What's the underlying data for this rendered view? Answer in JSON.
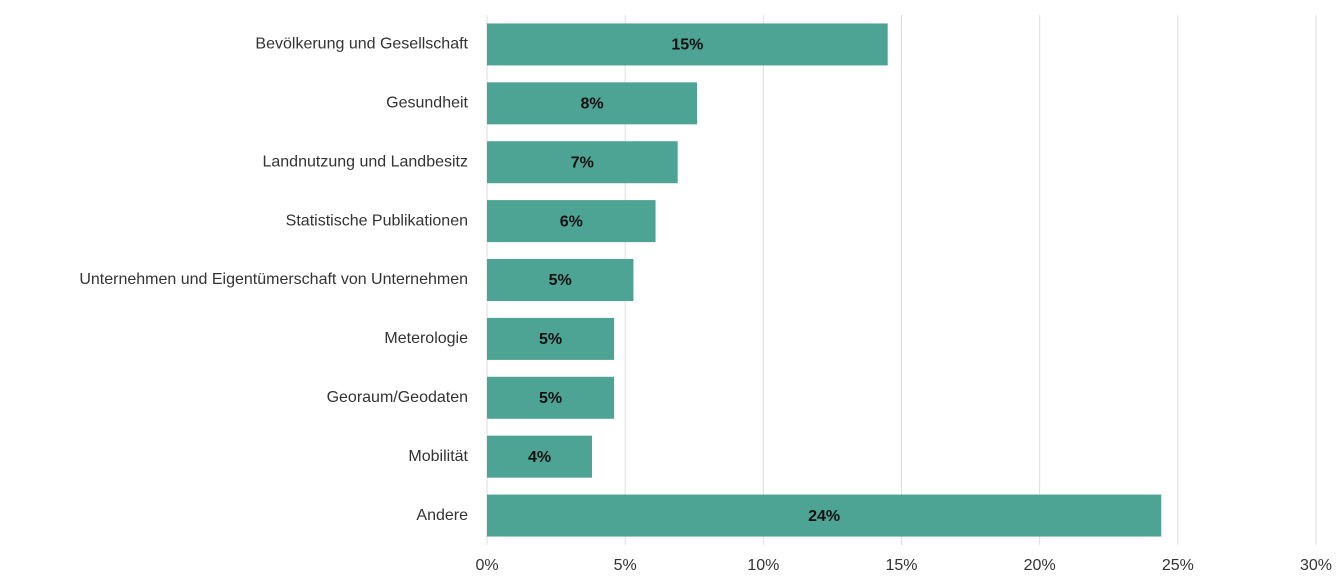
{
  "chart_data": {
    "type": "bar",
    "orientation": "horizontal",
    "categories": [
      "Bevölkerung und Gesellschaft",
      "Gesundheit",
      "Landnutzung und Landbesitz",
      "Statistische Publikationen",
      "Unternehmen und Eigentümerschaft von Unternehmen",
      "Meterologie",
      "Georaum/Geodaten",
      "Mobilität",
      "Andere"
    ],
    "values": [
      14.5,
      7.6,
      6.9,
      6.1,
      5.3,
      4.6,
      4.6,
      3.8,
      24.4
    ],
    "value_labels": [
      "15%",
      "8%",
      "7%",
      "6%",
      "5%",
      "5%",
      "5%",
      "4%",
      "24%"
    ],
    "color": "#4da394",
    "xlim": [
      0,
      30
    ],
    "xticks": [
      {
        "value": 0,
        "label": "0%"
      },
      {
        "value": 5,
        "label": "5%"
      },
      {
        "value": 10,
        "label": "10%"
      },
      {
        "value": 15,
        "label": "15%"
      },
      {
        "value": 20,
        "label": "20%"
      },
      {
        "value": 25,
        "label": "25%"
      },
      {
        "value": 30,
        "label": "30%"
      }
    ],
    "grid": true
  }
}
